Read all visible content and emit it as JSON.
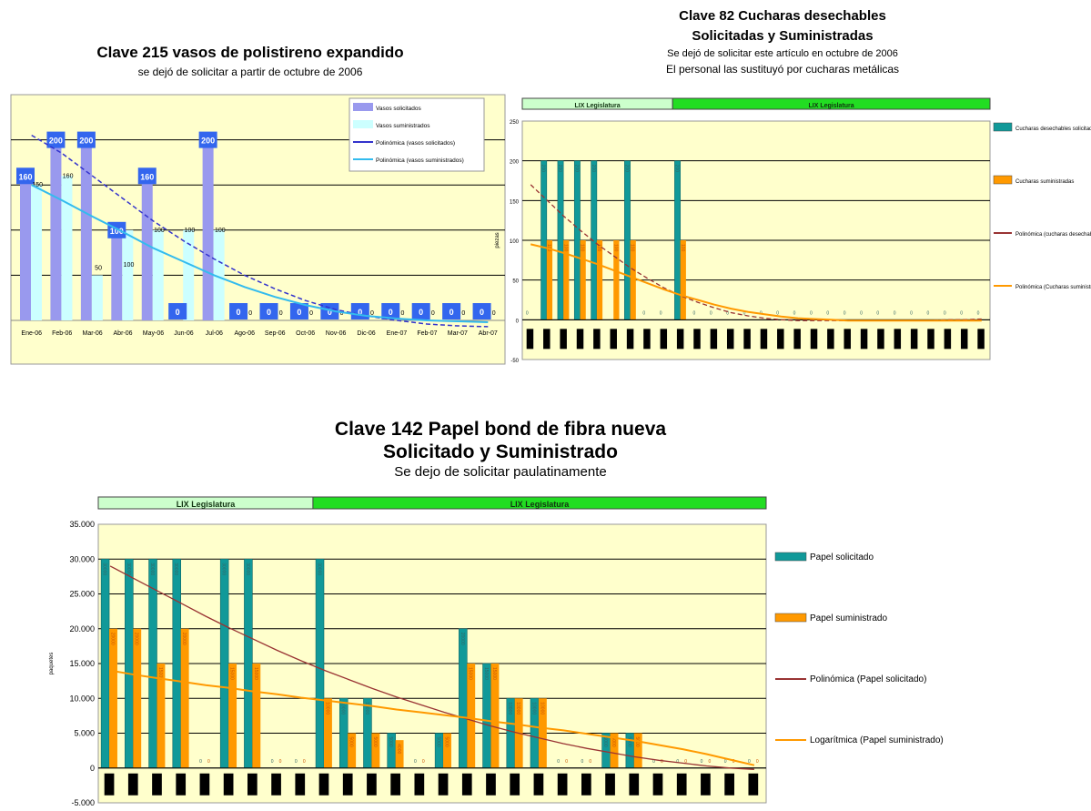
{
  "chart_data": [
    {
      "type": "bar",
      "title": "Clave  215 vasos de  polistireno expandido",
      "subtitle": "se dejó de solicitar a partir de octubre de 2006",
      "categories": [
        "Ene-06",
        "Feb-06",
        "Mar-06",
        "Abr-06",
        "May-06",
        "Jun-06",
        "Jul-06",
        "Ago-06",
        "Sep-06",
        "Oct-06",
        "Nov-06",
        "Dic-06",
        "Ene-07",
        "Feb-07",
        "Mar-07",
        "Abr-07"
      ],
      "series": [
        {
          "name": "Vasos solicitados",
          "values": [
            160,
            200,
            200,
            100,
            160,
            0,
            200,
            0,
            0,
            0,
            0,
            0,
            0,
            0,
            0,
            0
          ],
          "color": "#9999ee",
          "labels": [
            "160",
            "200",
            "200",
            "100",
            "160",
            "0",
            "200",
            "0",
            "0",
            "0",
            "0",
            "0",
            "0",
            "0",
            "0",
            "0"
          ]
        },
        {
          "name": "Vasos suministrados",
          "values": [
            150,
            160,
            50,
            100,
            100,
            100,
            100,
            0,
            0,
            0,
            0,
            0,
            0,
            0,
            0,
            0
          ],
          "color": "#ccffff",
          "labels": [
            "150",
            "160",
            "50",
            "100",
            "100",
            "100",
            "100",
            "0",
            "0",
            "0",
            "0",
            "0",
            "0",
            "0",
            "0",
            "0"
          ]
        }
      ],
      "trendlines": [
        {
          "name": "Polinómica (vasos solicitados)",
          "color": "#3333cc",
          "values": [
            205,
            185,
            160,
            135,
            110,
            88,
            68,
            50,
            35,
            22,
            12,
            5,
            0,
            -4,
            -6,
            -7
          ]
        },
        {
          "name": "Polinómica (vasos suministrados)",
          "color": "#33bbee",
          "values": [
            150,
            133,
            115,
            98,
            80,
            65,
            50,
            37,
            26,
            17,
            10,
            5,
            2,
            0,
            -1,
            -2
          ]
        }
      ],
      "ylim": [
        0,
        250
      ],
      "grid": true,
      "legend": "top-right"
    },
    {
      "type": "bar",
      "title": "Clave 82 Cucharas desechables",
      "subtitle": "Solicitadas y Suministradas",
      "notes": [
        "Se dejó de solicitar este artículo en octubre de 2006",
        "El personal las sustituyó por cucharas metálicas"
      ],
      "bands": [
        {
          "label": "LIX Legislatura",
          "from": 0,
          "to": 9,
          "color": "#ccffcc"
        },
        {
          "label": "LIX Legislatura",
          "from": 9,
          "to": 28,
          "color": "#22dd22"
        }
      ],
      "categories": [
        "",
        "",
        "",
        "",
        "",
        "",
        "",
        "",
        "",
        "",
        "",
        "",
        "",
        "",
        "",
        "",
        "",
        "",
        "",
        "",
        "",
        "",
        "",
        "",
        "",
        "",
        "",
        ""
      ],
      "series": [
        {
          "name": "Cucharas desechables solicitadas",
          "color": "#119999",
          "values": [
            0,
            200,
            200,
            200,
            200,
            0,
            200,
            0,
            0,
            200,
            0,
            0,
            0,
            0,
            0,
            0,
            0,
            0,
            0,
            0,
            0,
            0,
            0,
            0,
            0,
            0,
            0,
            0
          ],
          "labels": [
            "0",
            "200",
            "200",
            "200",
            "200",
            "",
            "200",
            "0",
            "0",
            "200",
            "0",
            "0",
            "0",
            "0",
            "0",
            "0",
            "0",
            "0",
            "0",
            "0",
            "0",
            "0",
            "0",
            "0",
            "0",
            "0",
            "0",
            "0"
          ]
        },
        {
          "name": "Cucharas suministradas",
          "color": "#ff9900",
          "values": [
            0,
            100,
            100,
            100,
            100,
            100,
            100,
            0,
            0,
            100,
            0,
            0,
            0,
            0,
            0,
            0,
            0,
            0,
            0,
            0,
            0,
            0,
            0,
            0,
            0,
            0,
            0,
            0
          ],
          "labels": [
            "",
            "100",
            "100",
            "100",
            "100",
            "100",
            "100",
            "",
            "",
            "100",
            "",
            "",
            "",
            "",
            "",
            "",
            "",
            "",
            "",
            "",
            "",
            "",
            "",
            "",
            "",
            "",
            "",
            ""
          ]
        }
      ],
      "trendlines": [
        {
          "name": "Polinómica (cucharas desechables solicitadas)",
          "color": "#993333",
          "dashed": true,
          "values": [
            170,
            150,
            130,
            112,
            95,
            80,
            65,
            52,
            40,
            30,
            22,
            15,
            9,
            5,
            2,
            0,
            -1,
            -1,
            -1,
            -1,
            -1,
            -1,
            -1,
            -1,
            -1,
            0,
            0,
            1
          ]
        },
        {
          "name": "Polinómica (Cucharas suministradas)",
          "color": "#ff9900",
          "values": [
            95,
            90,
            84,
            77,
            70,
            62,
            54,
            46,
            38,
            31,
            25,
            19,
            14,
            10,
            7,
            4,
            2,
            1,
            0,
            -1,
            -1,
            -1,
            -1,
            -1,
            -1,
            -1,
            -1,
            -1
          ]
        }
      ],
      "ylim": [
        -50,
        250
      ],
      "yticks": [
        -50,
        0,
        50,
        100,
        150,
        200,
        250
      ],
      "ylabel": "piezas",
      "grid": true,
      "legend": "right"
    },
    {
      "type": "bar",
      "title": "Clave 142 Papel bond de fibra nueva",
      "subtitle": "Solicitado y Suministrado",
      "notes": [
        "Se dejo de solicitar paulatinamente"
      ],
      "bands": [
        {
          "label": "LIX Legislatura",
          "from": 0,
          "to": 9,
          "color": "#ccffcc"
        },
        {
          "label": "LIX Legislatura",
          "from": 9,
          "to": 28,
          "color": "#22dd22"
        }
      ],
      "categories": [
        "",
        "",
        "",
        "",
        "",
        "",
        "",
        "",
        "",
        "",
        "",
        "",
        "",
        "",
        "",
        "",
        "",
        "",
        "",
        "",
        "",
        "",
        "",
        "",
        "",
        "",
        "",
        ""
      ],
      "series": [
        {
          "name": "Papel solicitado",
          "color": "#119999",
          "values": [
            30000,
            30000,
            30000,
            30000,
            0,
            30000,
            30000,
            0,
            0,
            30000,
            10000,
            10000,
            5000,
            0,
            5000,
            20000,
            15000,
            10000,
            10000,
            0,
            0,
            5000,
            5000,
            0,
            0,
            0,
            0,
            0
          ],
          "labels": [
            "30000",
            "30000",
            "30000",
            "30000",
            "0",
            "30000",
            "30000",
            "0",
            "0",
            "30000",
            "10000",
            "10000",
            "5000",
            "0",
            "5000",
            "20000",
            "15000",
            "10000",
            "10000",
            "0",
            "0",
            "5000",
            "5000",
            "0",
            "0",
            "0",
            "0",
            "0"
          ]
        },
        {
          "name": "Papel suministrado",
          "color": "#ff9900",
          "values": [
            20000,
            20000,
            15000,
            20000,
            0,
            15000,
            15000,
            0,
            0,
            10000,
            5000,
            5000,
            4000,
            0,
            5000,
            15000,
            15000,
            10000,
            10000,
            0,
            0,
            5000,
            5000,
            0,
            0,
            0,
            0,
            0
          ],
          "labels": [
            "20000",
            "20000",
            "15000",
            "20000",
            "0",
            "15000",
            "15000",
            "0",
            "0",
            "10000",
            "5000",
            "5000",
            "4000",
            "0",
            "5000",
            "15000",
            "15000",
            "10000",
            "10000",
            "0",
            "0",
            "5000",
            "5000",
            "0",
            "0",
            "0",
            "0",
            "0"
          ]
        }
      ],
      "trendlines": [
        {
          "name": "Polinómica (Papel solicitado)",
          "color": "#993333",
          "values": [
            29000,
            27200,
            25400,
            23600,
            21800,
            20100,
            18500,
            16900,
            15400,
            14000,
            12700,
            11400,
            10200,
            9100,
            8000,
            7000,
            6000,
            5100,
            4300,
            3500,
            2800,
            2200,
            1600,
            1100,
            700,
            300,
            0,
            -200
          ]
        },
        {
          "name": "Logarítmica (Papel suministrado)",
          "color": "#ff9900",
          "values": [
            14000,
            13400,
            12900,
            12400,
            11900,
            11500,
            11000,
            10600,
            10100,
            9700,
            9300,
            8900,
            8400,
            8000,
            7600,
            7200,
            6700,
            6300,
            5800,
            5400,
            4900,
            4400,
            3900,
            3300,
            2700,
            2000,
            1200,
            400
          ]
        }
      ],
      "ylim": [
        -5000,
        35000
      ],
      "yticks": [
        -5000,
        0,
        5000,
        10000,
        15000,
        20000,
        25000,
        30000,
        35000
      ],
      "ytick_labels": [
        "-5.000",
        "0",
        "5.000",
        "10.000",
        "15.000",
        "20.000",
        "25.000",
        "30.000",
        "35.000"
      ],
      "ylabel": "paquetes",
      "grid": true,
      "legend": "right"
    }
  ]
}
